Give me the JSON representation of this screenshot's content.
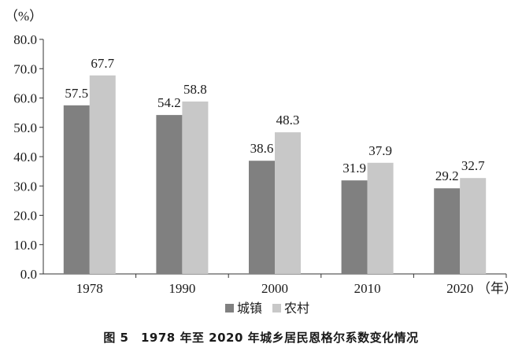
{
  "chart_data": {
    "type": "bar",
    "categories": [
      "1978",
      "1990",
      "2000",
      "2010",
      "2020"
    ],
    "series": [
      {
        "name": "城镇",
        "values": [
          57.5,
          54.2,
          38.6,
          31.9,
          29.2
        ],
        "color": "#808080"
      },
      {
        "name": "农村",
        "values": [
          67.7,
          58.8,
          48.3,
          37.9,
          32.7
        ],
        "color": "#c8c8c8"
      }
    ],
    "ylabel": "（%）",
    "xlabel": "（年）",
    "ylim": [
      0,
      80
    ],
    "yticks": [
      "0.0",
      "10.0",
      "20.0",
      "30.0",
      "40.0",
      "50.0",
      "60.0",
      "70.0",
      "80.0"
    ],
    "grid": false,
    "legend": "bottom"
  },
  "figure": {
    "caption": "图 5　1978 年至 2020 年城乡居民恩格尔系数变化情况"
  }
}
